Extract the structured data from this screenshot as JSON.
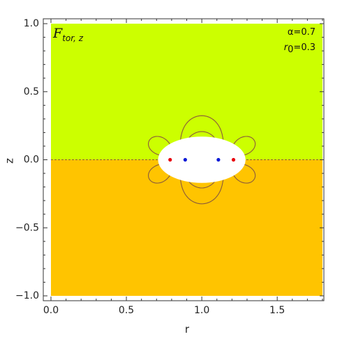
{
  "chart_data": {
    "type": "contour",
    "title": "F",
    "title_subscript": "tor, z",
    "annotations": {
      "alpha": "α=0.7",
      "r0_label": "r",
      "r0_subscript": "0",
      "r0_value": "=0.3"
    },
    "xlabel": "r",
    "ylabel": "z",
    "xlim": [
      0.0,
      1.8
    ],
    "ylim": [
      -1.0,
      1.0
    ],
    "x_ticks": [
      0.0,
      0.5,
      1.0,
      1.5
    ],
    "x_tick_labels": [
      "0.0",
      "0.5",
      "1.0",
      "1.5"
    ],
    "y_ticks": [
      -1.0,
      -0.5,
      0.0,
      0.5,
      1.0
    ],
    "y_tick_labels": [
      "−1.0",
      "−0.5",
      "0.0",
      "0.5",
      "1.0"
    ],
    "regions": [
      {
        "name": "z > 0",
        "color": "#ccff00"
      },
      {
        "name": "z < 0",
        "color": "#ffc400"
      }
    ],
    "excluded_region": {
      "shape": "ellipse",
      "center": [
        1.0,
        0.0
      ],
      "semi_axes": [
        0.29,
        0.17
      ],
      "color": "#ffffff"
    },
    "contour_color": "#8a5a3c",
    "contour_levels": [
      -6.5,
      -4.5,
      -3.2,
      -2.4,
      -1.7,
      -1.2,
      -0.8,
      -0.5,
      -0.25,
      0.25,
      0.5,
      0.8,
      1.2,
      1.7,
      2.4,
      3.2,
      4.5,
      6.5
    ],
    "points": [
      {
        "x": 0.79,
        "y": 0.0,
        "color": "#e8000b"
      },
      {
        "x": 0.89,
        "y": 0.0,
        "color": "#0a1ad6"
      },
      {
        "x": 1.11,
        "y": 0.0,
        "color": "#0a1ad6"
      },
      {
        "x": 1.21,
        "y": 0.0,
        "color": "#e8000b"
      }
    ],
    "grid": false
  }
}
